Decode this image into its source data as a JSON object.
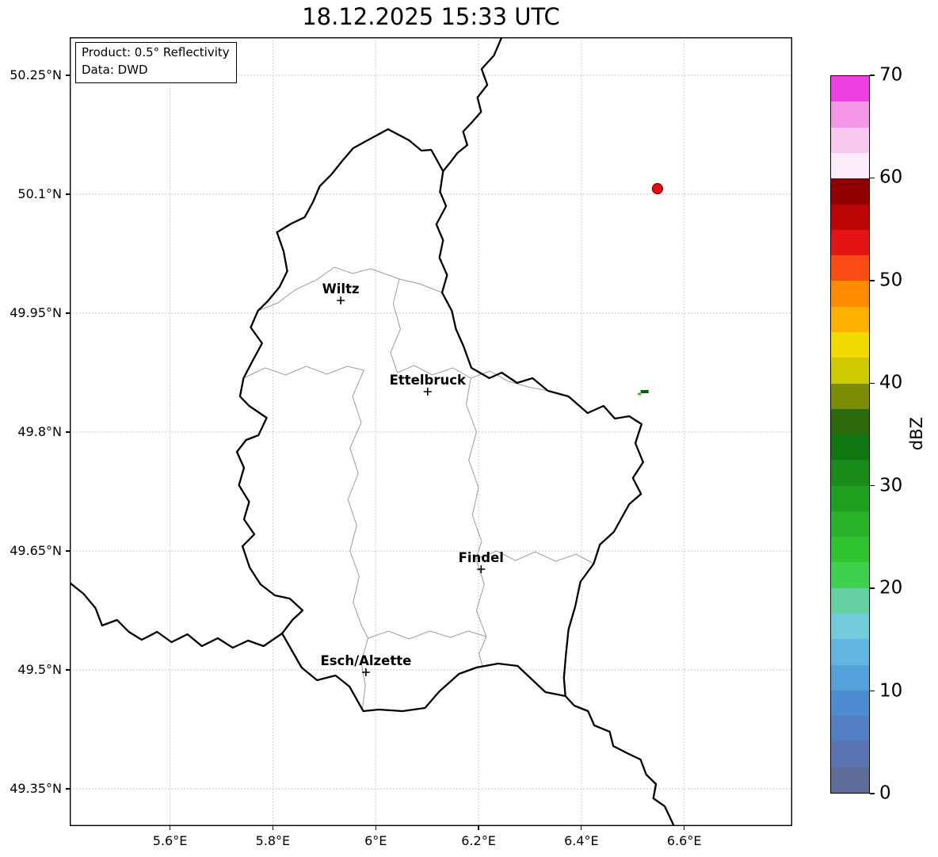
{
  "title": "18.12.2025 15:33 UTC",
  "info_box": {
    "line1": "Product: 0.5° Reflectivity",
    "line2": "Data: DWD"
  },
  "map": {
    "extent": {
      "lon_min": 5.405,
      "lon_max": 6.81,
      "lat_min": 49.303,
      "lat_max": 50.298
    },
    "x_ticks": [
      {
        "value": 5.6,
        "label": "5.6°E"
      },
      {
        "value": 5.8,
        "label": "5.8°E"
      },
      {
        "value": 6.0,
        "label": "6°E"
      },
      {
        "value": 6.2,
        "label": "6.2°E"
      },
      {
        "value": 6.4,
        "label": "6.4°E"
      },
      {
        "value": 6.6,
        "label": "6.6°E"
      }
    ],
    "y_ticks": [
      {
        "value": 50.25,
        "label": "50.25°N"
      },
      {
        "value": 50.1,
        "label": "50.1°N"
      },
      {
        "value": 49.95,
        "label": "49.95°N"
      },
      {
        "value": 49.8,
        "label": "49.8°N"
      },
      {
        "value": 49.65,
        "label": "49.65°N"
      },
      {
        "value": 49.5,
        "label": "49.5°N"
      },
      {
        "value": 49.35,
        "label": "49.35°N"
      }
    ],
    "cities": [
      {
        "name": "Wiltz",
        "lon": 5.932,
        "lat": 49.966
      },
      {
        "name": "Ettelbruck",
        "lon": 6.101,
        "lat": 49.851
      },
      {
        "name": "Findel",
        "lon": 6.205,
        "lat": 49.627
      },
      {
        "name": "Esch/Alzette",
        "lon": 5.981,
        "lat": 49.497
      }
    ],
    "radar_site": {
      "lon": 6.548,
      "lat": 50.107,
      "fill": "#e01010",
      "edge": "#8b0000"
    },
    "echoes": [
      {
        "lon": 6.523,
        "lat": 49.851,
        "color": "#0b5e0b",
        "w": 10,
        "h": 4
      },
      {
        "lon": 6.513,
        "lat": 49.848,
        "color": "#35b535",
        "w": 4,
        "h": 3
      }
    ],
    "styles": {
      "country_color": "#000000",
      "district_color": "#9b9b9b",
      "grid_color": "#b8b8b8"
    },
    "country_borders": [
      {
        "name": "luxembourg",
        "points": [
          [
            6.024,
            50.182
          ],
          [
            6.065,
            50.168
          ],
          [
            6.089,
            50.155
          ],
          [
            6.108,
            50.156
          ],
          [
            6.131,
            50.129
          ],
          [
            6.125,
            50.103
          ],
          [
            6.137,
            50.085
          ],
          [
            6.118,
            50.062
          ],
          [
            6.131,
            50.042
          ],
          [
            6.124,
            50.02
          ],
          [
            6.139,
            49.998
          ],
          [
            6.129,
            49.976
          ],
          [
            6.148,
            49.953
          ],
          [
            6.156,
            49.93
          ],
          [
            6.171,
            49.908
          ],
          [
            6.186,
            49.881
          ],
          [
            6.221,
            49.868
          ],
          [
            6.245,
            49.875
          ],
          [
            6.275,
            49.862
          ],
          [
            6.305,
            49.868
          ],
          [
            6.335,
            49.852
          ],
          [
            6.375,
            49.845
          ],
          [
            6.412,
            49.824
          ],
          [
            6.443,
            49.833
          ],
          [
            6.465,
            49.817
          ],
          [
            6.493,
            49.82
          ],
          [
            6.517,
            49.81
          ],
          [
            6.505,
            49.786
          ],
          [
            6.52,
            49.762
          ],
          [
            6.5,
            49.742
          ],
          [
            6.516,
            49.722
          ],
          [
            6.493,
            49.709
          ],
          [
            6.463,
            49.674
          ],
          [
            6.436,
            49.658
          ],
          [
            6.424,
            49.634
          ],
          [
            6.398,
            49.611
          ],
          [
            6.388,
            49.58
          ],
          [
            6.375,
            49.551
          ],
          [
            6.37,
            49.52
          ],
          [
            6.366,
            49.49
          ],
          [
            6.369,
            49.467
          ],
          [
            6.33,
            49.472
          ],
          [
            6.302,
            49.489
          ],
          [
            6.276,
            49.505
          ],
          [
            6.238,
            49.508
          ],
          [
            6.196,
            49.503
          ],
          [
            6.162,
            49.495
          ],
          [
            6.124,
            49.473
          ],
          [
            6.096,
            49.452
          ],
          [
            6.052,
            49.448
          ],
          [
            6.006,
            49.45
          ],
          [
            5.976,
            49.448
          ],
          [
            5.949,
            49.479
          ],
          [
            5.922,
            49.493
          ],
          [
            5.886,
            49.487
          ],
          [
            5.856,
            49.503
          ],
          [
            5.818,
            49.546
          ],
          [
            5.838,
            49.563
          ],
          [
            5.858,
            49.575
          ],
          [
            5.833,
            49.59
          ],
          [
            5.804,
            49.594
          ],
          [
            5.776,
            49.608
          ],
          [
            5.755,
            49.629
          ],
          [
            5.741,
            49.656
          ],
          [
            5.764,
            49.671
          ],
          [
            5.744,
            49.69
          ],
          [
            5.754,
            49.712
          ],
          [
            5.734,
            49.733
          ],
          [
            5.744,
            49.755
          ],
          [
            5.73,
            49.775
          ],
          [
            5.748,
            49.79
          ],
          [
            5.772,
            49.796
          ],
          [
            5.788,
            49.818
          ],
          [
            5.754,
            49.833
          ],
          [
            5.736,
            49.845
          ],
          [
            5.743,
            49.868
          ],
          [
            5.76,
            49.889
          ],
          [
            5.779,
            49.912
          ],
          [
            5.757,
            49.932
          ],
          [
            5.771,
            49.953
          ],
          [
            5.79,
            49.965
          ],
          [
            5.813,
            49.983
          ],
          [
            5.828,
            50.003
          ],
          [
            5.821,
            50.028
          ],
          [
            5.808,
            50.052
          ],
          [
            5.836,
            50.063
          ],
          [
            5.862,
            50.071
          ],
          [
            5.878,
            50.09
          ],
          [
            5.891,
            50.11
          ],
          [
            5.914,
            50.125
          ],
          [
            5.935,
            50.142
          ],
          [
            5.956,
            50.158
          ],
          [
            5.984,
            50.168
          ],
          [
            6.024,
            50.182
          ]
        ]
      },
      {
        "name": "belgium-germany",
        "points": [
          [
            6.245,
            50.298
          ],
          [
            6.23,
            50.275
          ],
          [
            6.206,
            50.258
          ],
          [
            6.217,
            50.238
          ],
          [
            6.198,
            50.222
          ],
          [
            6.205,
            50.204
          ],
          [
            6.186,
            50.19
          ],
          [
            6.17,
            50.179
          ],
          [
            6.178,
            50.162
          ],
          [
            6.159,
            50.152
          ],
          [
            6.146,
            50.141
          ],
          [
            6.131,
            50.129
          ]
        ]
      },
      {
        "name": "france-belgium",
        "points": [
          [
            5.405,
            49.61
          ],
          [
            5.432,
            49.596
          ],
          [
            5.455,
            49.578
          ],
          [
            5.468,
            49.556
          ],
          [
            5.497,
            49.563
          ],
          [
            5.52,
            49.548
          ],
          [
            5.545,
            49.538
          ],
          [
            5.575,
            49.548
          ],
          [
            5.603,
            49.535
          ],
          [
            5.634,
            49.545
          ],
          [
            5.662,
            49.53
          ],
          [
            5.693,
            49.54
          ],
          [
            5.722,
            49.528
          ],
          [
            5.752,
            49.537
          ],
          [
            5.782,
            49.53
          ],
          [
            5.818,
            49.546
          ]
        ]
      },
      {
        "name": "france-germany",
        "points": [
          [
            6.369,
            49.467
          ],
          [
            6.386,
            49.455
          ],
          [
            6.413,
            49.448
          ],
          [
            6.425,
            49.43
          ],
          [
            6.455,
            49.422
          ],
          [
            6.462,
            49.404
          ],
          [
            6.489,
            49.395
          ],
          [
            6.515,
            49.387
          ],
          [
            6.526,
            49.368
          ],
          [
            6.545,
            49.356
          ],
          [
            6.54,
            49.338
          ],
          [
            6.562,
            49.328
          ],
          [
            6.575,
            49.31
          ],
          [
            6.58,
            49.303
          ]
        ]
      }
    ],
    "district_borders": [
      [
        [
          5.771,
          49.953
        ],
        [
          5.81,
          49.963
        ],
        [
          5.845,
          49.98
        ],
        [
          5.885,
          49.992
        ],
        [
          5.92,
          50.008
        ],
        [
          5.955,
          50.0
        ],
        [
          5.99,
          50.006
        ],
        [
          6.025,
          49.998
        ],
        [
          6.046,
          49.993
        ],
        [
          6.085,
          49.987
        ],
        [
          6.129,
          49.976
        ]
      ],
      [
        [
          6.046,
          49.993
        ],
        [
          6.034,
          49.962
        ],
        [
          6.048,
          49.93
        ],
        [
          6.029,
          49.9
        ],
        [
          6.042,
          49.875
        ]
      ],
      [
        [
          5.743,
          49.868
        ],
        [
          5.785,
          49.881
        ],
        [
          5.825,
          49.872
        ],
        [
          5.865,
          49.883
        ],
        [
          5.905,
          49.873
        ],
        [
          5.945,
          49.883
        ],
        [
          5.977,
          49.878
        ]
      ],
      [
        [
          5.977,
          49.878
        ],
        [
          5.955,
          49.845
        ],
        [
          5.972,
          49.812
        ],
        [
          5.95,
          49.78
        ],
        [
          5.966,
          49.748
        ],
        [
          5.946,
          49.715
        ],
        [
          5.963,
          49.682
        ],
        [
          5.95,
          49.65
        ],
        [
          5.968,
          49.618
        ],
        [
          5.956,
          49.585
        ],
        [
          5.973,
          49.555
        ],
        [
          5.985,
          49.54
        ],
        [
          5.972,
          49.51
        ],
        [
          5.98,
          49.48
        ],
        [
          5.974,
          49.45
        ]
      ],
      [
        [
          6.042,
          49.875
        ],
        [
          6.075,
          49.884
        ],
        [
          6.11,
          49.872
        ],
        [
          6.15,
          49.881
        ],
        [
          6.185,
          49.868
        ],
        [
          6.222,
          49.877
        ],
        [
          6.258,
          49.864
        ],
        [
          6.296,
          49.857
        ],
        [
          6.335,
          49.852
        ]
      ],
      [
        [
          6.185,
          49.868
        ],
        [
          6.176,
          49.835
        ],
        [
          6.196,
          49.8
        ],
        [
          6.181,
          49.765
        ],
        [
          6.2,
          49.73
        ],
        [
          6.188,
          49.695
        ],
        [
          6.206,
          49.662
        ],
        [
          6.195,
          49.64
        ]
      ],
      [
        [
          6.195,
          49.64
        ],
        [
          6.235,
          49.65
        ],
        [
          6.272,
          49.638
        ],
        [
          6.31,
          49.649
        ],
        [
          6.35,
          49.637
        ],
        [
          6.39,
          49.646
        ],
        [
          6.424,
          49.634
        ]
      ],
      [
        [
          6.195,
          49.64
        ],
        [
          6.211,
          49.608
        ],
        [
          6.196,
          49.575
        ],
        [
          6.215,
          49.542
        ],
        [
          6.201,
          49.52
        ],
        [
          6.208,
          49.504
        ]
      ],
      [
        [
          5.985,
          49.54
        ],
        [
          6.025,
          49.549
        ],
        [
          6.065,
          49.539
        ],
        [
          6.105,
          49.549
        ],
        [
          6.145,
          49.541
        ],
        [
          6.18,
          49.549
        ],
        [
          6.215,
          49.542
        ]
      ]
    ]
  },
  "colorbar": {
    "label": "dBZ",
    "vmin": 0,
    "vmax": 70,
    "ticks": [
      0,
      10,
      20,
      30,
      40,
      50,
      60,
      70
    ],
    "colors": [
      "#5e6c99",
      "#5a74b2",
      "#527fc4",
      "#4e8cd2",
      "#53a0db",
      "#63b5e1",
      "#73cad9",
      "#66d0a2",
      "#3fd04d",
      "#31c431",
      "#27b227",
      "#1f9f1f",
      "#188b18",
      "#117611",
      "#2c6a0c",
      "#7c8c07",
      "#cfcb00",
      "#f3da00",
      "#ffb300",
      "#ff8b00",
      "#fb4b15",
      "#e41414",
      "#bb0505",
      "#8e0000",
      "#fcebf8",
      "#fac9ef",
      "#f595e8",
      "#ee3fe0"
    ]
  }
}
